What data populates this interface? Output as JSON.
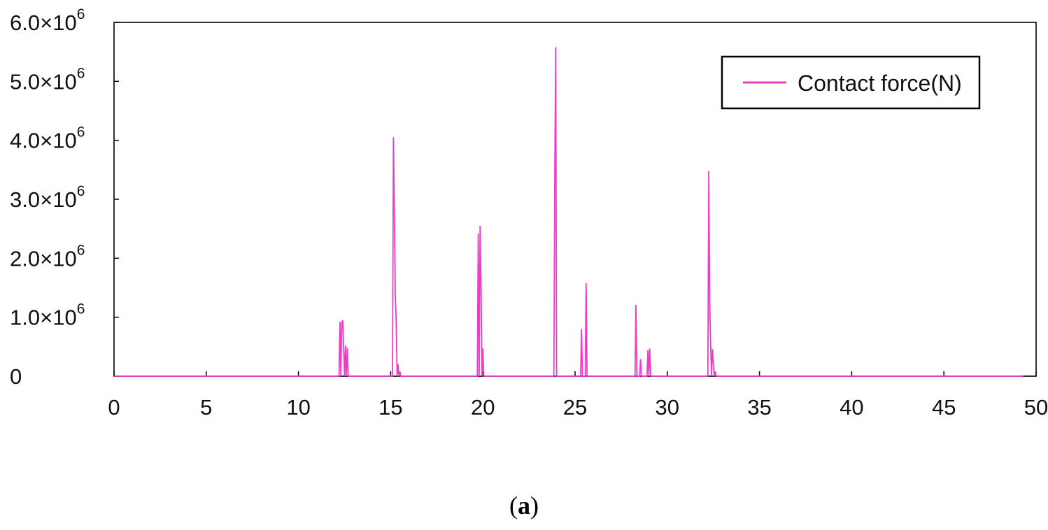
{
  "chart_data": {
    "type": "line",
    "title": "",
    "xlabel": "",
    "ylabel": "",
    "xlim": [
      0,
      50
    ],
    "ylim": [
      0,
      6000000
    ],
    "x_ticks": [
      0,
      5,
      10,
      15,
      20,
      25,
      30,
      35,
      40,
      45,
      50
    ],
    "x_tick_labels": [
      "0",
      "5",
      "10",
      "15",
      "20",
      "25",
      "30",
      "35",
      "40",
      "45",
      "50"
    ],
    "y_ticks": [
      {
        "value": 0,
        "mantissa": "0",
        "exponent": ""
      },
      {
        "value": 1000000,
        "mantissa": "1.0×10",
        "exponent": "6"
      },
      {
        "value": 2000000,
        "mantissa": "2.0×10",
        "exponent": "6"
      },
      {
        "value": 3000000,
        "mantissa": "3.0×10",
        "exponent": "6"
      },
      {
        "value": 4000000,
        "mantissa": "4.0×10",
        "exponent": "6"
      },
      {
        "value": 5000000,
        "mantissa": "5.0×10",
        "exponent": "6"
      },
      {
        "value": 6000000,
        "mantissa": "6.0×10",
        "exponent": "6"
      }
    ],
    "grid": false,
    "legend_position": "top-right",
    "series": [
      {
        "name": "Contact force(N)",
        "color": "#ee3bc8",
        "x": [
          0,
          12.2,
          12.25,
          12.3,
          12.35,
          12.4,
          12.45,
          12.5,
          12.55,
          12.6,
          12.65,
          12.7,
          12.75,
          12.8,
          15.0,
          15.1,
          15.15,
          15.2,
          15.25,
          15.3,
          15.35,
          15.4,
          15.45,
          15.5,
          15.55,
          15.6,
          19.7,
          19.75,
          19.8,
          19.85,
          19.9,
          19.95,
          20.0,
          20.05,
          20.1,
          20.15,
          20.2,
          23.85,
          23.9,
          23.95,
          24.0,
          24.05,
          25.3,
          25.35,
          25.4,
          25.55,
          25.6,
          25.65,
          28.25,
          28.3,
          28.35,
          28.5,
          28.55,
          28.6,
          28.9,
          28.95,
          29.0,
          29.05,
          29.1,
          29.15,
          29.2,
          32.2,
          32.25,
          32.3,
          32.35,
          32.4,
          32.45,
          32.5,
          32.55,
          32.6,
          32.65,
          32.7,
          49.3
        ],
        "y": [
          0,
          0,
          920000,
          0,
          900000,
          950000,
          500000,
          0,
          520000,
          0,
          480000,
          0,
          0,
          0,
          0,
          0,
          4050000,
          2850000,
          1400000,
          940000,
          0,
          200000,
          0,
          80000,
          0,
          0,
          0,
          2420000,
          0,
          2550000,
          1600000,
          0,
          470000,
          0,
          0,
          0,
          0,
          0,
          3400000,
          5580000,
          0,
          0,
          0,
          800000,
          0,
          0,
          1580000,
          0,
          0,
          1210000,
          0,
          0,
          290000,
          0,
          0,
          440000,
          0,
          470000,
          0,
          0,
          0,
          0,
          3480000,
          1300000,
          550000,
          0,
          460000,
          220000,
          0,
          80000,
          0,
          0,
          0
        ]
      }
    ]
  },
  "caption": {
    "open": "(",
    "letter": "a",
    "close": ")"
  }
}
